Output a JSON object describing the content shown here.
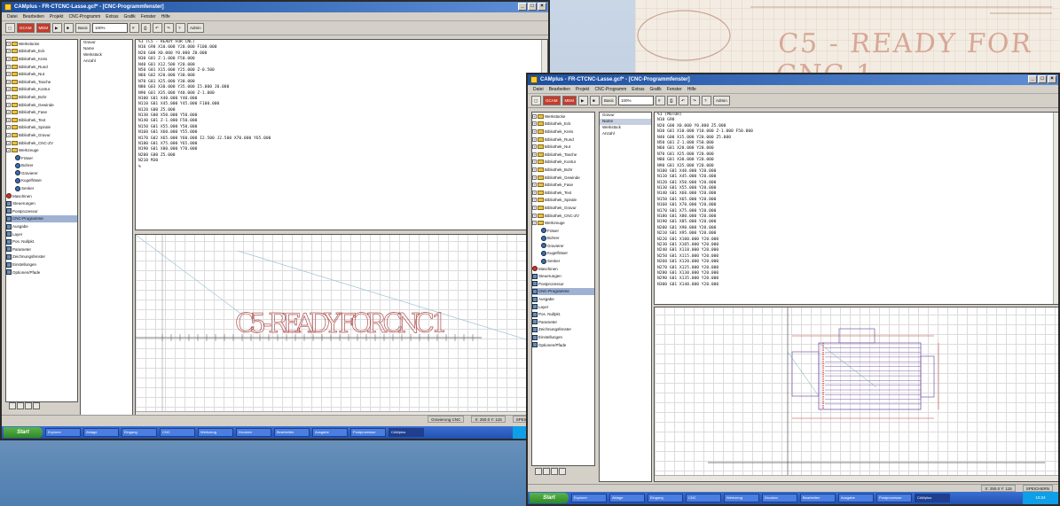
{
  "paper": {
    "text": "C5 - READY FOR CNC 1"
  },
  "windows": {
    "a": {
      "title": "CAMplus - FR-CTCNC-Lasse.gcf* - [CNC-Programmfenster]",
      "menus": [
        "Datei",
        "Bearbeiten",
        "Projekt",
        "CNC-Programm",
        "Extras",
        "Grafik",
        "Fenster",
        "Hilfe"
      ],
      "toolbar": [
        "GCAM",
        "MEM",
        "Basic",
        "Admin"
      ],
      "zoom": "100%",
      "tree": [
        {
          "label": "Werkstücke",
          "kind": "root"
        },
        {
          "label": "Bibliothek_Eck",
          "kind": "folder"
        },
        {
          "label": "Bibliothek_Kreis",
          "kind": "folder"
        },
        {
          "label": "Bibliothek_Rund",
          "kind": "folder"
        },
        {
          "label": "Bibliothek_Nut",
          "kind": "folder"
        },
        {
          "label": "Bibliothek_Tasche",
          "kind": "folder"
        },
        {
          "label": "Bibliothek_Kontur",
          "kind": "folder"
        },
        {
          "label": "Bibliothek_Bohr",
          "kind": "folder"
        },
        {
          "label": "Bibliothek_Gewinde",
          "kind": "folder"
        },
        {
          "label": "Bibliothek_Fase",
          "kind": "folder"
        },
        {
          "label": "Bibliothek_Text",
          "kind": "folder"
        },
        {
          "label": "Bibliothek_Spirale",
          "kind": "folder"
        },
        {
          "label": "Bibliothek_Gravur",
          "kind": "folder"
        },
        {
          "label": "Bibliothek_CNC-ZV",
          "kind": "folder"
        },
        {
          "label": "Werkzeuge",
          "kind": "folder"
        },
        {
          "label": "Fräser",
          "kind": "tool"
        },
        {
          "label": "Bohrer",
          "kind": "tool"
        },
        {
          "label": "Gravierer",
          "kind": "tool"
        },
        {
          "label": "Kugelfräser",
          "kind": "tool"
        },
        {
          "label": "Senker",
          "kind": "tool"
        },
        {
          "label": "Maschinen",
          "kind": "red"
        },
        {
          "label": "Steuerungen",
          "kind": "plain"
        },
        {
          "label": "Postprozessor",
          "kind": "sq"
        },
        {
          "label": "CNC-Programme",
          "kind": "sel"
        },
        {
          "label": "Ausgabe",
          "kind": "sq"
        },
        {
          "label": "Layer",
          "kind": "sq"
        },
        {
          "label": "Pos. Nullpkt.",
          "kind": "sq"
        },
        {
          "label": "Parameter",
          "kind": "sq"
        },
        {
          "label": "Zeichnungsfenster",
          "kind": "sq"
        },
        {
          "label": "Einstellungen",
          "kind": "sq"
        },
        {
          "label": "Optionen/Pfade",
          "kind": "sq"
        }
      ],
      "list": [
        "Gravur",
        "Name",
        "Werkstück",
        "Anzahl"
      ],
      "code": [
        "%1 (C5 - READY FOR CNC)",
        "N10 G90 X10.000 Y20.000 F100.000",
        "N20 G00 X0.000 Y0.000 Z0.000",
        "N30 G01 Z-1.000 F50.000",
        "N40 G01 X12.500 Y20.000",
        "N50 G01 X15.000 Y25.000 Z-0.500",
        "N60 G02 X20.000 Y30.000",
        "N70 G01 X25.000 Y30.000",
        "N80 G03 X30.000 Y35.000 I5.000 J0.000",
        "N90 G01 X35.000 Y40.000 Z-1.000",
        "N100 G01 X40.000 Y40.000",
        "N110 G01 X45.000 Y45.000 F100.000",
        "N120 G00 Z5.000",
        "N130 G00 X50.000 Y50.000",
        "N140 G01 Z-1.000 F50.000",
        "N150 G01 X55.000 Y50.000",
        "N160 G01 X60.000 Y55.000",
        "N170 G02 X65.000 Y60.000 I2.500 J2.500 X70.000 Y65.000",
        "N180 G01 X75.000 Y65.000",
        "N190 G01 X80.000 Y70.000",
        "N200 G00 Z5.000",
        "N210 M30",
        "%"
      ],
      "canvas_text": "C5 - READY FOR CNC 1",
      "status": [
        "Gravierung CNC",
        "X: 250.0  Y: 115",
        "SPEICHERN"
      ],
      "tasks": [
        "Explorer",
        "Ablage",
        "Eingang",
        "CNC",
        "Werkzeug",
        "Drucken",
        "Bearbeiten",
        "Ausgabe",
        "Postprozessor",
        "CAMplus"
      ],
      "start_label": "Start",
      "clock": "10:24"
    },
    "b": {
      "title": "CAMplus - FR-CTCNC-Lasse.gcf* - [CNC-Programmfenster]",
      "menus": [
        "Datei",
        "Bearbeiten",
        "Projekt",
        "CNC-Programm",
        "Extras",
        "Grafik",
        "Fenster",
        "Hilfe"
      ],
      "toolbar": [
        "GCAM",
        "MEM",
        "Basic",
        "Admin"
      ],
      "zoom": "100%",
      "list": [
        "Gravur",
        "Name",
        "Werkstück",
        "Anzahl"
      ],
      "code": [
        "%1 (MOTOR)",
        "N10 G90",
        "N20 G00 X0.000 Y0.000 Z5.000",
        "N30 G01 X10.000 Y10.000 Z-1.000 F50.000",
        "N40 G00 X15.000 Y20.000 Z5.000",
        "N50 G01 Z-1.000 F50.000",
        "N60 G01 X20.000 Y20.000",
        "N70 G01 X25.000 Y20.000",
        "N80 G01 X30.000 Y20.000",
        "N90 G01 X35.000 Y20.000",
        "N100 G01 X40.000 Y20.000",
        "N110 G01 X45.000 Y20.000",
        "N120 G01 X50.000 Y20.000",
        "N130 G01 X55.000 Y20.000",
        "N140 G01 X60.000 Y20.000",
        "N150 G01 X65.000 Y20.000",
        "N160 G01 X70.000 Y20.000",
        "N170 G01 X75.000 Y20.000",
        "N180 G01 X80.000 Y20.000",
        "N190 G01 X85.000 Y20.000",
        "N200 G01 X90.000 Y20.000",
        "N210 G01 X95.000 Y20.000",
        "N220 G01 X100.000 Y20.000",
        "N230 G01 X105.000 Y20.000",
        "N240 G01 X110.000 Y20.000",
        "N250 G01 X115.000 Y20.000",
        "N260 G01 X120.000 Y20.000",
        "N270 G01 X125.000 Y20.000",
        "N280 G01 X130.000 Y20.000",
        "N290 G01 X135.000 Y20.000",
        "N300 G01 X140.000 Y20.000"
      ],
      "status": [
        "X: 250.0  Y: 115",
        "SPEICHERN"
      ],
      "start_label": "Start",
      "clock": "10:24"
    }
  },
  "colors": {
    "title_start": "#1c4fa1",
    "accent": "#b05050",
    "taskbar": "#2251b3"
  }
}
